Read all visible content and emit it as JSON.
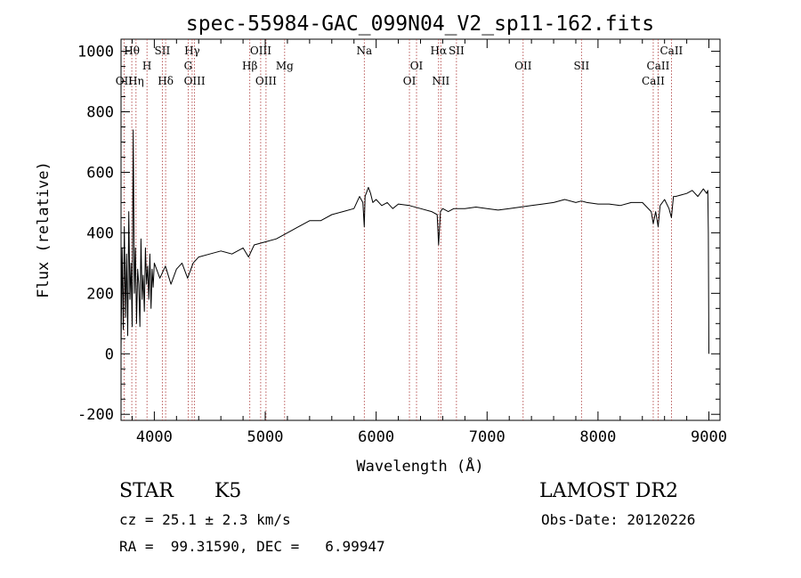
{
  "chart_data": {
    "type": "line",
    "title": "spec-55984-GAC_099N04_V2_sp11-162.fits",
    "xlabel": "Wavelength (Å)",
    "ylabel": "Flux (relative)",
    "xlim": [
      3700,
      9100
    ],
    "ylim": [
      -220,
      1040
    ],
    "x_ticks": [
      4000,
      5000,
      6000,
      7000,
      8000,
      9000
    ],
    "y_ticks": [
      -200,
      0,
      200,
      400,
      600,
      800,
      1000
    ],
    "grid": false,
    "series": [
      {
        "color": "#000000",
        "x": [
          3700,
          3710,
          3720,
          3730,
          3740,
          3750,
          3760,
          3770,
          3780,
          3790,
          3800,
          3810,
          3820,
          3830,
          3840,
          3850,
          3860,
          3870,
          3880,
          3890,
          3900,
          3910,
          3920,
          3930,
          3940,
          3950,
          3960,
          3970,
          3980,
          3990,
          4000,
          4050,
          4100,
          4150,
          4200,
          4250,
          4300,
          4350,
          4400,
          4500,
          4600,
          4700,
          4800,
          4850,
          4900,
          5000,
          5100,
          5200,
          5300,
          5400,
          5500,
          5600,
          5700,
          5800,
          5850,
          5880,
          5893,
          5900,
          5930,
          5950,
          5970,
          6000,
          6050,
          6100,
          6150,
          6200,
          6300,
          6400,
          6500,
          6550,
          6563,
          6580,
          6600,
          6650,
          6700,
          6800,
          6900,
          7000,
          7100,
          7200,
          7300,
          7400,
          7500,
          7600,
          7700,
          7800,
          7850,
          7900,
          8000,
          8100,
          8200,
          8300,
          8400,
          8480,
          8498,
          8520,
          8542,
          8560,
          8600,
          8640,
          8662,
          8680,
          8700,
          8800,
          8850,
          8900,
          8950,
          8980,
          8990,
          8995,
          9000
        ],
        "y": [
          10,
          350,
          80,
          420,
          120,
          330,
          60,
          470,
          180,
          300,
          90,
          740,
          200,
          350,
          100,
          280,
          230,
          90,
          380,
          180,
          260,
          140,
          350,
          230,
          290,
          180,
          330,
          150,
          280,
          220,
          300,
          250,
          290,
          230,
          280,
          300,
          250,
          300,
          320,
          330,
          340,
          330,
          350,
          320,
          360,
          370,
          380,
          400,
          420,
          440,
          440,
          460,
          470,
          480,
          520,
          500,
          420,
          520,
          550,
          530,
          500,
          510,
          490,
          500,
          480,
          495,
          490,
          480,
          470,
          460,
          360,
          470,
          480,
          470,
          480,
          480,
          485,
          480,
          475,
          480,
          485,
          490,
          495,
          500,
          510,
          500,
          505,
          500,
          495,
          495,
          490,
          500,
          500,
          470,
          430,
          470,
          420,
          490,
          510,
          480,
          450,
          520,
          520,
          530,
          540,
          520,
          545,
          530,
          540,
          400,
          0
        ]
      }
    ],
    "line_markers": [
      {
        "label": "Hθ",
        "x": 3797,
        "row": 1
      },
      {
        "label": "OII",
        "x": 3727,
        "row": 3
      },
      {
        "label": "Hη",
        "x": 3835,
        "row": 3
      },
      {
        "label": "H",
        "x": 3934,
        "row": 2
      },
      {
        "label": "SII",
        "x": 4072,
        "row": 1
      },
      {
        "label": "Hδ",
        "x": 4102,
        "row": 3
      },
      {
        "label": "Hγ",
        "x": 4341,
        "row": 1
      },
      {
        "label": "G",
        "x": 4305,
        "row": 2
      },
      {
        "label": "OIII",
        "x": 4363,
        "row": 3
      },
      {
        "label": "OIII",
        "x": 4959,
        "row": 1
      },
      {
        "label": "Hβ",
        "x": 4861,
        "row": 2
      },
      {
        "label": "OIII",
        "x": 5007,
        "row": 3
      },
      {
        "label": "Mg",
        "x": 5175,
        "row": 2
      },
      {
        "label": "Na",
        "x": 5893,
        "row": 1
      },
      {
        "label": "OI",
        "x": 6364,
        "row": 2
      },
      {
        "label": "OI",
        "x": 6300,
        "row": 3
      },
      {
        "label": "Hα",
        "x": 6563,
        "row": 1
      },
      {
        "label": "SII",
        "x": 6724,
        "row": 1
      },
      {
        "label": "NII",
        "x": 6583,
        "row": 3
      },
      {
        "label": "OII",
        "x": 7325,
        "row": 2
      },
      {
        "label": "SII",
        "x": 7851,
        "row": 2
      },
      {
        "label": "CaII",
        "x": 8498,
        "row": 3
      },
      {
        "label": "CaII",
        "x": 8542,
        "row": 2
      },
      {
        "label": "CaII",
        "x": 8662,
        "row": 1
      }
    ]
  },
  "info": {
    "object_type": "STAR",
    "subclass": "K5",
    "cz": "cz = 25.1 ± 2.3 km/s",
    "coords": "RA =  99.31590, DEC =   6.99947",
    "survey": "LAMOST DR2",
    "obs_date": "Obs-Date: 20120226"
  }
}
